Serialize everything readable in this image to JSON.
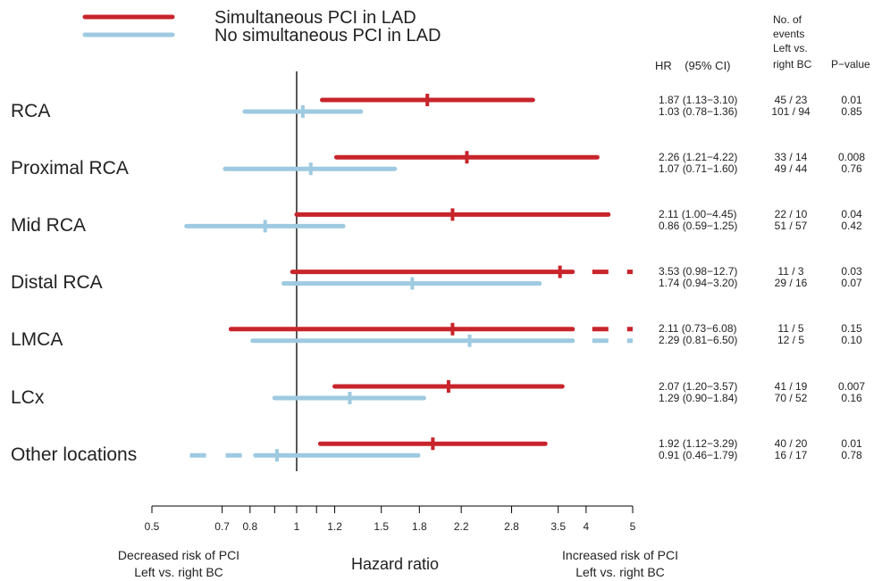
{
  "chart_data": {
    "type": "forest",
    "legend": {
      "placement": "top-left",
      "items": [
        {
          "label": "Simultaneous PCI in LAD",
          "color": "#c8242b"
        },
        {
          "label": "No simultaneous PCI in LAD",
          "color": "#9ecae1"
        }
      ]
    },
    "columns": {
      "hr": "HR    (95% CI)",
      "events_line1": "No. of",
      "events_line2": "events",
      "events_line3": "Left vs.",
      "events_line4": "right BC",
      "pvalue": "P−value"
    },
    "x_axis": {
      "scale": "log",
      "range": [
        0.5,
        5
      ],
      "reference_line": 1,
      "ticks": [
        0.5,
        0.7,
        0.8,
        0.9,
        1,
        1.1,
        1.2,
        1.5,
        1.8,
        2.2,
        2.8,
        3.5,
        4,
        5
      ],
      "tick_labels": [
        {
          "value": 0.5,
          "label": "0.5"
        },
        {
          "value": 0.7,
          "label": "0.7"
        },
        {
          "value": 0.8,
          "label": "0.8"
        },
        {
          "value": 1,
          "label": "1"
        },
        {
          "value": 1.2,
          "label": "1.2"
        },
        {
          "value": 1.5,
          "label": "1.5"
        },
        {
          "value": 1.8,
          "label": "1.8"
        },
        {
          "value": 2.2,
          "label": "2.2"
        },
        {
          "value": 2.8,
          "label": "2.8"
        },
        {
          "value": 3.5,
          "label": "3.5"
        },
        {
          "value": 4,
          "label": "4"
        },
        {
          "value": 5,
          "label": "5"
        }
      ],
      "label": "Hazard ratio",
      "left_annotation": [
        "Decreased risk of PCI",
        "Left vs. right BC"
      ],
      "right_annotation": [
        "Increased risk of PCI",
        "Left vs. right BC"
      ]
    },
    "rows": [
      {
        "label": "RCA",
        "series": [
          {
            "hr": 1.87,
            "lo": 1.13,
            "hi": 3.1,
            "text": "1.87 (1.13−3.10)",
            "events": "45 / 23",
            "p": "0.01"
          },
          {
            "hr": 1.03,
            "lo": 0.78,
            "hi": 1.36,
            "text": "1.03 (0.78−1.36)",
            "events": "101 / 94",
            "p": "0.85"
          }
        ]
      },
      {
        "label": "Proximal RCA",
        "series": [
          {
            "hr": 2.26,
            "lo": 1.21,
            "hi": 4.22,
            "text": "2.26 (1.21−4.22)",
            "events": "33 / 14",
            "p": "0.008"
          },
          {
            "hr": 1.07,
            "lo": 0.71,
            "hi": 1.6,
            "text": "1.07 (0.71−1.60)",
            "events": "49 / 44",
            "p": "0.76"
          }
        ]
      },
      {
        "label": "Mid RCA",
        "series": [
          {
            "hr": 2.11,
            "lo": 1.0,
            "hi": 4.45,
            "text": "2.11 (1.00−4.45)",
            "events": "22 / 10",
            "p": "0.04"
          },
          {
            "hr": 0.86,
            "lo": 0.59,
            "hi": 1.25,
            "text": "0.86 (0.59−1.25)",
            "events": "51 / 57",
            "p": "0.42"
          }
        ]
      },
      {
        "label": "Distal RCA",
        "series": [
          {
            "hr": 3.53,
            "lo": 0.98,
            "hi": 12.7,
            "text": "3.53 (0.98−12.7)",
            "events": "11 / 3",
            "p": "0.03"
          },
          {
            "hr": 1.74,
            "lo": 0.94,
            "hi": 3.2,
            "text": "1.74 (0.94−3.20)",
            "events": "29 / 16",
            "p": "0.07"
          }
        ]
      },
      {
        "label": "LMCA",
        "series": [
          {
            "hr": 2.11,
            "lo": 0.73,
            "hi": 6.08,
            "text": "2.11 (0.73−6.08)",
            "events": "11 / 5",
            "p": "0.15"
          },
          {
            "hr": 2.29,
            "lo": 0.81,
            "hi": 6.5,
            "text": "2.29 (0.81−6.50)",
            "events": "12 / 5",
            "p": "0.10"
          }
        ]
      },
      {
        "label": "LCx",
        "series": [
          {
            "hr": 2.07,
            "lo": 1.2,
            "hi": 3.57,
            "text": "2.07 (1.20−3.57)",
            "events": "41 / 19",
            "p": "0.007"
          },
          {
            "hr": 1.29,
            "lo": 0.9,
            "hi": 1.84,
            "text": "1.29 (0.90−1.84)",
            "events": "70 / 52",
            "p": "0.16"
          }
        ]
      },
      {
        "label": "Other locations",
        "series": [
          {
            "hr": 1.92,
            "lo": 1.12,
            "hi": 3.29,
            "text": "1.92 (1.12−3.29)",
            "events": "40 / 20",
            "p": "0.01"
          },
          {
            "hr": 0.91,
            "lo": 0.46,
            "hi": 1.79,
            "text": "0.91 (0.46−1.79)",
            "events": "16 / 17",
            "p": "0.78"
          }
        ]
      }
    ]
  }
}
